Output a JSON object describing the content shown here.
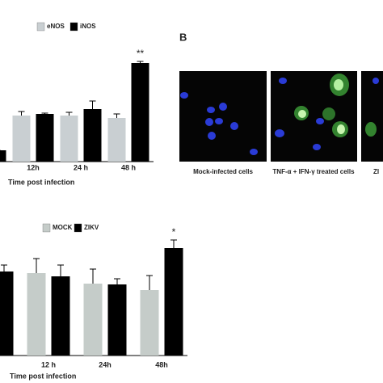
{
  "chart_data": [
    {
      "type": "bar",
      "x_label": "Time post infection",
      "annotation": "**",
      "categories": [
        null,
        "12h",
        "24 h",
        "48 h"
      ],
      "series": [
        {
          "name": "eNOS",
          "color": "#c9cfd2",
          "values": [
            null,
            57,
            57,
            54
          ],
          "errors": [
            null,
            5,
            4,
            5
          ]
        },
        {
          "name": "iNOS",
          "color": "#000000",
          "values": [
            14,
            59,
            65,
            122
          ],
          "errors": [
            0,
            1,
            10,
            2
          ]
        }
      ],
      "ylim": [
        0,
        130
      ]
    },
    {
      "type": "bar",
      "x_label": "Time post infection",
      "annotation": "*",
      "categories": [
        null,
        "12 h",
        "24h",
        "48h"
      ],
      "series": [
        {
          "name": "MOCK",
          "color": "#c5ccc9",
          "values": [
            null,
            102,
            89,
            81
          ],
          "errors": [
            null,
            18,
            18,
            18
          ]
        },
        {
          "name": "ZIKV",
          "color": "#000000",
          "values": [
            104,
            98,
            88,
            133
          ],
          "errors": [
            8,
            14,
            7,
            10
          ]
        }
      ],
      "ylim": [
        0,
        150
      ]
    }
  ],
  "panel_b": {
    "label": "B",
    "captions": [
      "Mock-infected cells",
      "TNF-α + IFN-γ treated cells",
      "ZI"
    ]
  }
}
